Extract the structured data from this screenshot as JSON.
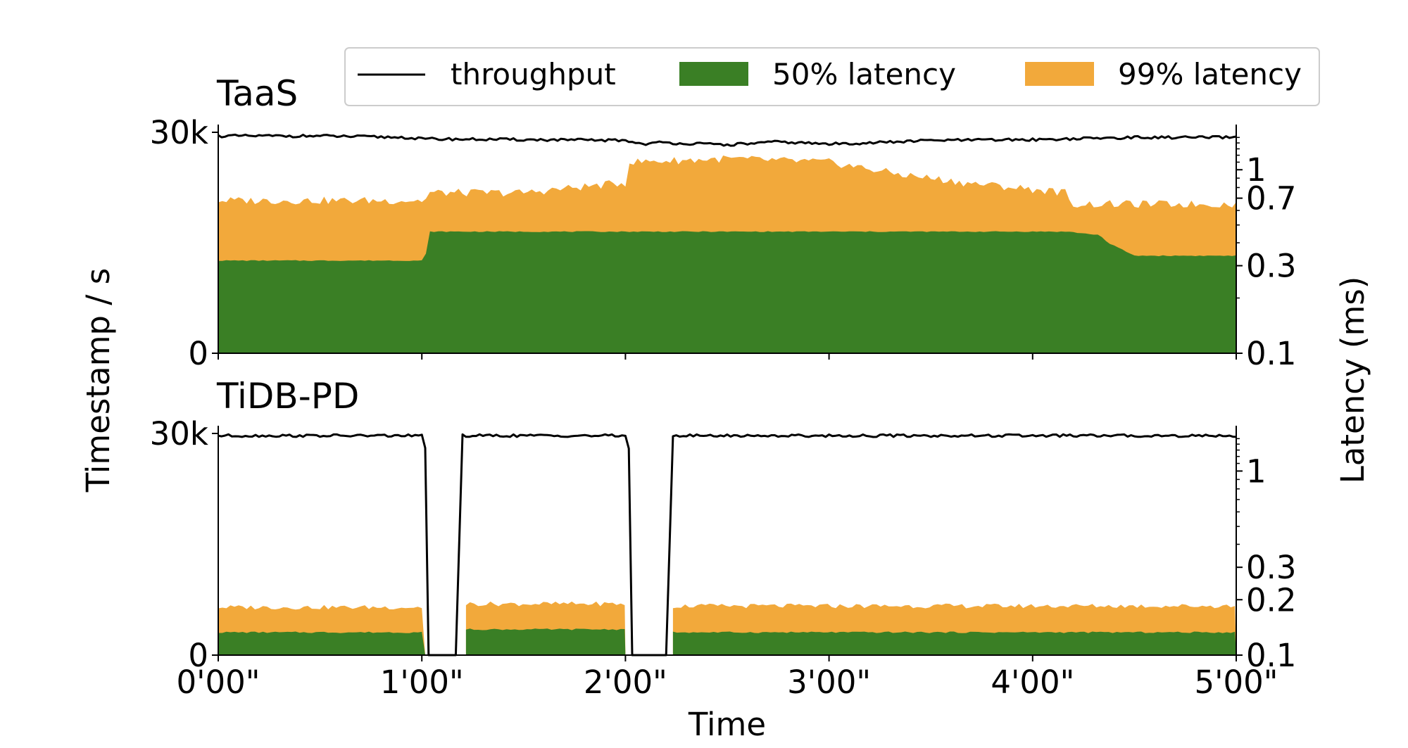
{
  "chart_data": {
    "type": "area",
    "colors": {
      "throughput": "#000000",
      "p50": "#3a7f25",
      "p99": "#f2a93b"
    },
    "legend": {
      "placement": "top-center",
      "entries": [
        "throughput",
        "50% latency",
        "99% latency"
      ]
    },
    "xlabel": "Time",
    "xticks": [
      "0'00\"",
      "1'00\"",
      "2'00\"",
      "3'00\"",
      "4'00\"",
      "5'00\""
    ],
    "xlim_seconds": [
      0,
      300
    ],
    "ylabel_left": "Timestamp / s",
    "ylabel_right": "Latency (ms)",
    "panels": [
      {
        "title": "TaaS",
        "left_ylim": [
          0,
          30000
        ],
        "left_yticks": [
          "0",
          "30k"
        ],
        "right_scale": "log",
        "right_ylim_ms": [
          0.1,
          1.6
        ],
        "right_yticks": [
          "0.1",
          "0.3",
          "0.7",
          "1"
        ],
        "throughput": {
          "x": [
            0,
            30,
            55,
            60,
            90,
            120,
            125,
            130,
            150,
            165,
            180,
            200,
            210,
            240,
            270,
            300
          ],
          "y": [
            29500,
            29500,
            29300,
            29100,
            29000,
            28900,
            28400,
            28600,
            28300,
            28700,
            28400,
            28700,
            28900,
            29000,
            29300,
            29300
          ]
        },
        "p50_latency_ms": {
          "x": [
            0,
            61,
            62,
            120,
            200,
            250,
            260,
            262,
            270,
            300
          ],
          "y": [
            0.32,
            0.32,
            0.46,
            0.46,
            0.46,
            0.46,
            0.44,
            0.4,
            0.34,
            0.34
          ]
        },
        "p99_latency_ms": {
          "x": [
            0,
            61,
            62,
            90,
            120,
            121,
            150,
            180,
            200,
            220,
            250,
            251,
            300
          ],
          "y": [
            0.68,
            0.68,
            0.75,
            0.75,
            0.85,
            1.1,
            1.15,
            1.1,
            0.95,
            0.85,
            0.75,
            0.65,
            0.65
          ]
        }
      },
      {
        "title": "TiDB-PD",
        "left_ylim": [
          0,
          30000
        ],
        "left_yticks": [
          "0",
          "30k"
        ],
        "right_scale": "log",
        "right_ylim_ms": [
          0.1,
          1.6
        ],
        "right_yticks": [
          "0.1",
          "0.2",
          "0.3",
          "1"
        ],
        "throughput": {
          "x": [
            0,
            60,
            61,
            62,
            70,
            72,
            120,
            121,
            122,
            132,
            134,
            300
          ],
          "y": [
            29700,
            29700,
            28000,
            0,
            0,
            29700,
            29700,
            28000,
            0,
            0,
            29700,
            29700
          ]
        },
        "p50_latency_ms": {
          "segments": [
            {
              "x": [
                0,
                61
              ],
              "y": [
                0.133,
                0.133
              ]
            },
            {
              "x": [
                73,
                120
              ],
              "y": [
                0.138,
                0.138
              ]
            },
            {
              "x": [
                134,
                300
              ],
              "y": [
                0.133,
                0.133
              ]
            }
          ]
        },
        "p99_latency_ms": {
          "segments": [
            {
              "x": [
                0,
                61
              ],
              "y": [
                0.182,
                0.182
              ]
            },
            {
              "x": [
                73,
                120
              ],
              "y": [
                0.19,
                0.19
              ]
            },
            {
              "x": [
                134,
                300
              ],
              "y": [
                0.185,
                0.185
              ]
            }
          ]
        }
      }
    ]
  }
}
